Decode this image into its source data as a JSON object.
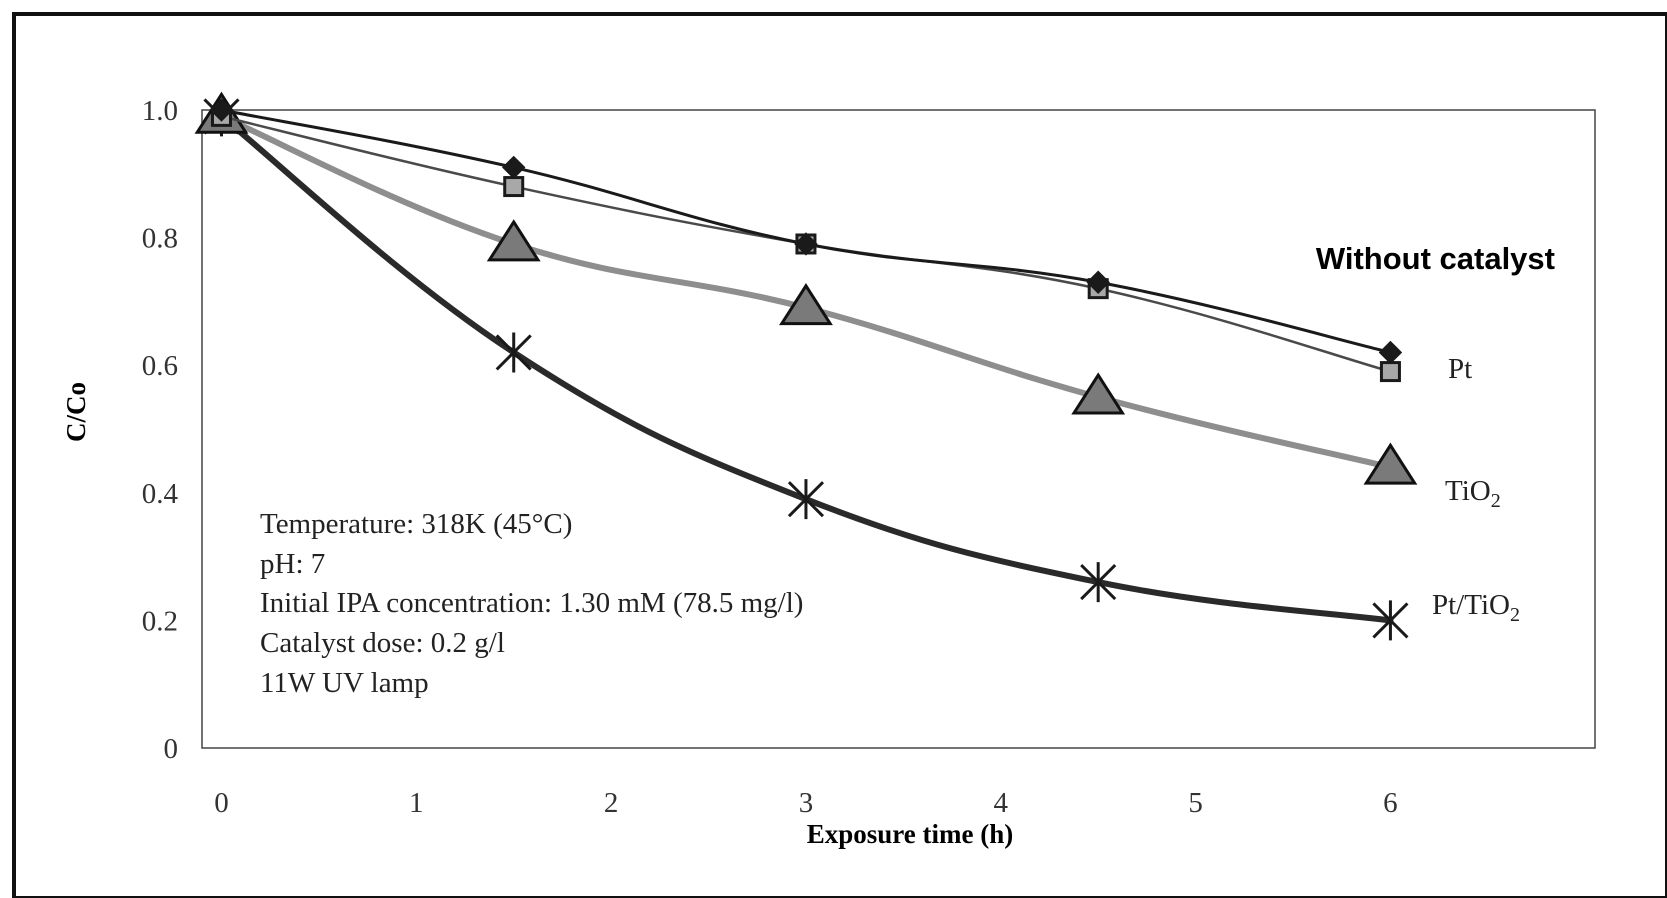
{
  "chart_data": {
    "type": "line",
    "xlabel": "Exposure time (h)",
    "ylabel": "C/Co",
    "xlim": [
      -0.1,
      7.05
    ],
    "ylim": [
      0,
      1.0
    ],
    "x_ticks": [
      "0",
      "1",
      "2",
      "3",
      "4",
      "5",
      "6"
    ],
    "y_ticks": [
      "0",
      "0.2",
      "0.4",
      "0.6",
      "0.8",
      "1.0"
    ],
    "grid": false,
    "legend": "inline-right",
    "annotation_title": "Without catalyst",
    "conditions": [
      "Temperature: 318K (45°C)",
      "pH: 7",
      "Initial IPA concentration: 1.30 mM (78.5 mg/l)",
      "Catalyst dose: 0.2 g/l",
      "11W UV lamp"
    ],
    "series": [
      {
        "key": "without-catalyst",
        "marker": "diamond",
        "color": "#1a1a1a",
        "x": [
          0,
          1.5,
          3,
          4.5,
          6
        ],
        "y": [
          1.0,
          0.91,
          0.79,
          0.73,
          0.62
        ]
      },
      {
        "key": "pt",
        "name": "Pt",
        "marker": "square",
        "color": "#333333",
        "x": [
          0,
          1.5,
          3,
          4.5,
          6
        ],
        "y": [
          0.99,
          0.88,
          0.79,
          0.72,
          0.59
        ]
      },
      {
        "key": "tio2",
        "name": "TiO",
        "name_sub": "2",
        "marker": "triangle",
        "color": "#8a8a8a",
        "x": [
          0,
          1.5,
          3,
          4.5,
          6
        ],
        "y": [
          0.99,
          0.79,
          0.69,
          0.55,
          0.44
        ]
      },
      {
        "key": "pt-tio2",
        "name": "Pt/TiO",
        "name_sub": "2",
        "marker": "star",
        "color": "#262626",
        "x": [
          0,
          1.5,
          3,
          4.5,
          6
        ],
        "y": [
          0.99,
          0.62,
          0.39,
          0.26,
          0.2
        ]
      }
    ]
  }
}
